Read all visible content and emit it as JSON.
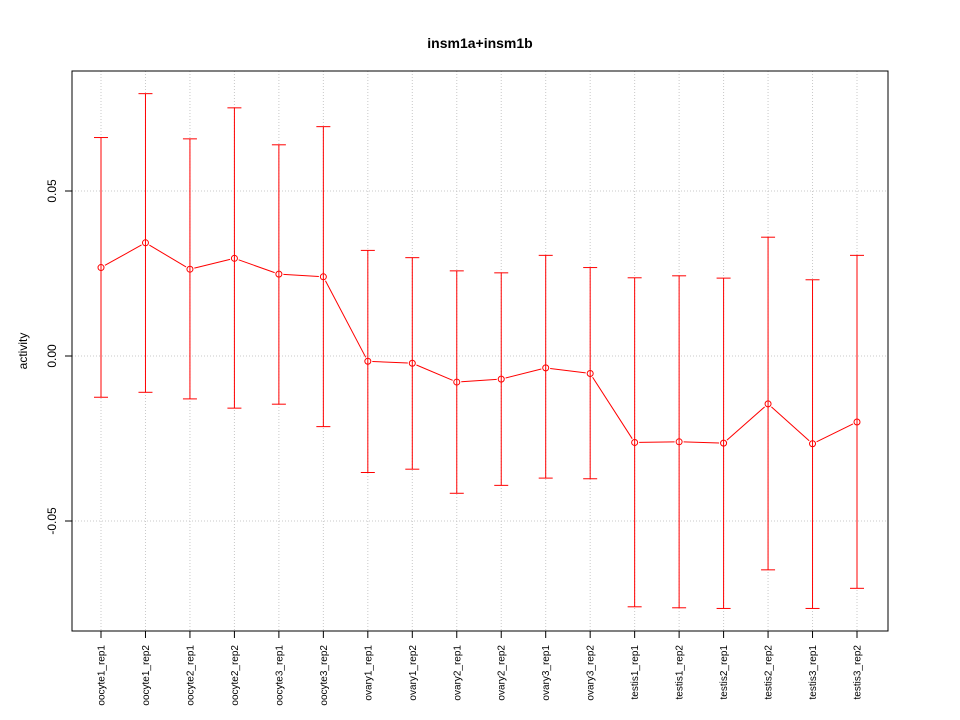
{
  "chart_data": {
    "type": "line",
    "title": "insm1a+insm1b",
    "xlabel": "",
    "ylabel": "activity",
    "ylim": [
      -0.082,
      0.086
    ],
    "yticks": [
      -0.05,
      0.0,
      0.05
    ],
    "ytick_labels": [
      "-0.05",
      "0.00",
      "0.05"
    ],
    "grid": true,
    "categories": [
      "oocyte1_rep1",
      "oocyte1_rep2",
      "oocyte2_rep1",
      "oocyte2_rep2",
      "oocyte3_rep1",
      "oocyte3_rep2",
      "ovary1_rep1",
      "ovary1_rep2",
      "ovary2_rep1",
      "ovary2_rep2",
      "ovary3_rep1",
      "ovary3_rep2",
      "testis1_rep1",
      "testis1_rep2",
      "testis2_rep1",
      "testis2_rep2",
      "testis3_rep1",
      "testis3_rep2"
    ],
    "series": [
      {
        "color": "#ff0000",
        "values": [
          0.0268,
          0.0343,
          0.0263,
          0.0296,
          0.0248,
          0.024,
          -0.0016,
          -0.0022,
          -0.0079,
          -0.007,
          -0.0036,
          -0.0053,
          -0.0262,
          -0.026,
          -0.0264,
          -0.0145,
          -0.0266,
          -0.02
        ],
        "upper": [
          0.0662,
          0.0795,
          0.0658,
          0.0752,
          0.064,
          0.0695,
          0.032,
          0.0298,
          0.0258,
          0.0252,
          0.0305,
          0.0268,
          0.0237,
          0.0243,
          0.0236,
          0.036,
          0.0231,
          0.0305
        ],
        "lower": [
          -0.0125,
          -0.011,
          -0.013,
          -0.0158,
          -0.0146,
          -0.0214,
          -0.0353,
          -0.0343,
          -0.0416,
          -0.0392,
          -0.037,
          -0.0372,
          -0.076,
          -0.0763,
          -0.0765,
          -0.0648,
          -0.0765,
          -0.0704
        ]
      }
    ]
  }
}
